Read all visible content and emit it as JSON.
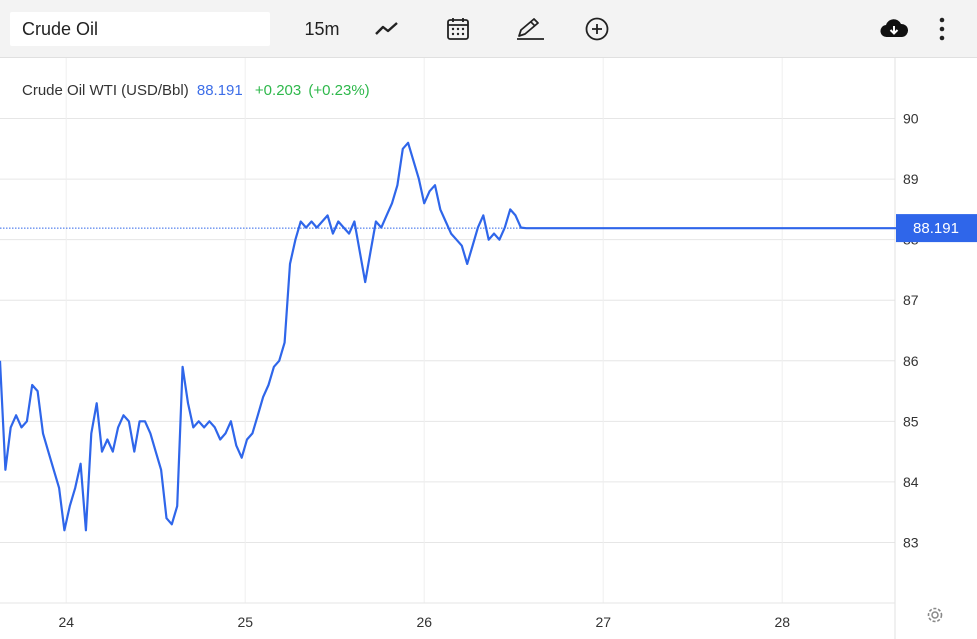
{
  "toolbar": {
    "symbol": "Crude Oil",
    "interval": "15m",
    "icons": {
      "line": "line-chart-icon",
      "calendar": "calendar-icon",
      "draw": "pencil-icon",
      "add": "plus-circle-icon",
      "download": "cloud-download-icon",
      "more": "more-vertical-icon",
      "settings": "gear-icon"
    }
  },
  "legend": {
    "name": "Crude Oil WTI (USD/Bbl)",
    "price": "88.191",
    "change": "+0.203",
    "change_pct": "(+0.23%)"
  },
  "colors": {
    "line": "#2f66ea",
    "up": "#2eb84b",
    "grid": "#e6e6e6",
    "label_bg": "#2f66ea"
  },
  "chart_data": {
    "type": "line",
    "x_tick_labels": [
      "24",
      "25",
      "26",
      "27",
      "28"
    ],
    "x_ticks": [
      23.77,
      24.77,
      25.77,
      26.77,
      27.77
    ],
    "xlim": [
      23.4,
      28.4
    ],
    "y_ticks": [
      83,
      84,
      85,
      86,
      87,
      88,
      89,
      90
    ],
    "ylim": [
      82.0,
      91.0
    ],
    "last_price": 88.191,
    "last_price_label": "88.191",
    "grid": true,
    "series": [
      {
        "name": "Crude Oil WTI (USD/Bbl)",
        "x": [
          23.4,
          23.43,
          23.46,
          23.49,
          23.52,
          23.55,
          23.58,
          23.61,
          23.64,
          23.67,
          23.7,
          23.73,
          23.76,
          23.79,
          23.82,
          23.85,
          23.88,
          23.91,
          23.94,
          23.97,
          24.0,
          24.03,
          24.06,
          24.09,
          24.12,
          24.15,
          24.18,
          24.21,
          24.24,
          24.27,
          24.3,
          24.33,
          24.36,
          24.39,
          24.42,
          24.45,
          24.48,
          24.51,
          24.54,
          24.57,
          24.6,
          24.63,
          24.66,
          24.69,
          24.72,
          24.75,
          24.78,
          24.81,
          24.84,
          24.87,
          24.9,
          24.93,
          24.96,
          24.99,
          25.02,
          25.05,
          25.08,
          25.11,
          25.14,
          25.17,
          25.2,
          25.23,
          25.26,
          25.29,
          25.32,
          25.35,
          25.38,
          25.41,
          25.44,
          25.47,
          25.5,
          25.53,
          25.56,
          25.59,
          25.62,
          25.65,
          25.68,
          25.71,
          25.74,
          25.77,
          25.8,
          25.83,
          25.86,
          25.89,
          25.92,
          25.95,
          25.98,
          26.01,
          26.04,
          26.07,
          26.1,
          26.13,
          26.16,
          26.19,
          26.22,
          26.25,
          26.28,
          26.31,
          26.34,
          26.37,
          26.4,
          26.43,
          26.46,
          26.49,
          26.52,
          26.55,
          26.58,
          26.61,
          26.64,
          26.67,
          26.7,
          26.73,
          26.76,
          26.79,
          26.82,
          26.85,
          26.88,
          26.91,
          26.94,
          26.97,
          27.0,
          27.03,
          27.06,
          27.09,
          27.12,
          27.15,
          27.18,
          27.21,
          27.24,
          27.27,
          27.3,
          27.33,
          27.36,
          27.39,
          27.42,
          27.45,
          27.48,
          27.51,
          27.54,
          27.57,
          27.6,
          27.63,
          27.66,
          27.69,
          27.72,
          27.75,
          27.78,
          27.81,
          27.84,
          27.87,
          27.9,
          27.93,
          27.96,
          27.99,
          28.02,
          28.05,
          28.08,
          28.11,
          28.14,
          28.17,
          28.2,
          28.23,
          28.26,
          28.29,
          28.32,
          28.35,
          28.38,
          28.41
        ],
        "values": [
          86.0,
          84.2,
          84.9,
          85.1,
          84.9,
          85.0,
          85.6,
          85.5,
          84.8,
          84.5,
          84.2,
          83.9,
          83.2,
          83.6,
          83.9,
          84.3,
          83.2,
          84.8,
          85.3,
          84.5,
          84.7,
          84.5,
          84.9,
          85.1,
          85.0,
          84.5,
          85.0,
          85.0,
          84.8,
          84.5,
          84.2,
          83.4,
          83.3,
          83.6,
          85.9,
          85.3,
          84.9,
          85.0,
          84.9,
          85.0,
          84.9,
          84.7,
          84.8,
          85.0,
          84.6,
          84.4,
          84.7,
          84.8,
          85.1,
          85.4,
          85.6,
          85.9,
          86.0,
          86.3,
          87.6,
          88.0,
          88.3,
          88.2,
          88.3,
          88.2,
          88.3,
          88.4,
          88.1,
          88.3,
          88.2,
          88.1,
          88.3,
          87.8,
          87.3,
          87.8,
          88.3,
          88.2,
          88.4,
          88.6,
          88.9,
          89.5,
          89.6,
          89.3,
          89.0,
          88.6,
          88.8,
          88.9,
          88.5,
          88.3,
          88.1,
          88.0,
          87.9,
          87.6,
          87.9,
          88.2,
          88.4,
          88.0,
          88.1,
          88.0,
          88.2,
          88.5,
          88.4,
          88.2,
          88.19,
          88.19,
          88.19,
          88.19,
          88.19,
          88.19,
          88.19,
          88.19,
          88.19,
          88.19,
          88.19,
          88.19,
          88.19,
          88.19,
          88.19,
          88.19,
          88.19,
          88.19,
          88.19,
          88.19,
          88.19,
          88.19,
          88.19,
          88.19,
          88.19,
          88.19,
          88.19,
          88.19,
          88.19,
          88.19,
          88.19,
          88.19,
          88.19,
          88.19,
          88.19,
          88.19,
          88.19,
          88.19,
          88.19,
          88.19,
          88.19,
          88.19,
          88.19,
          88.19,
          88.19,
          88.19,
          88.19,
          88.19,
          88.19,
          88.19,
          88.19,
          88.19,
          88.19,
          88.19,
          88.19,
          88.19,
          88.19,
          88.19,
          88.19,
          88.19,
          88.19,
          88.19,
          88.19,
          88.19,
          88.19,
          88.19,
          88.19,
          88.19,
          88.19,
          88.19
        ]
      }
    ]
  }
}
